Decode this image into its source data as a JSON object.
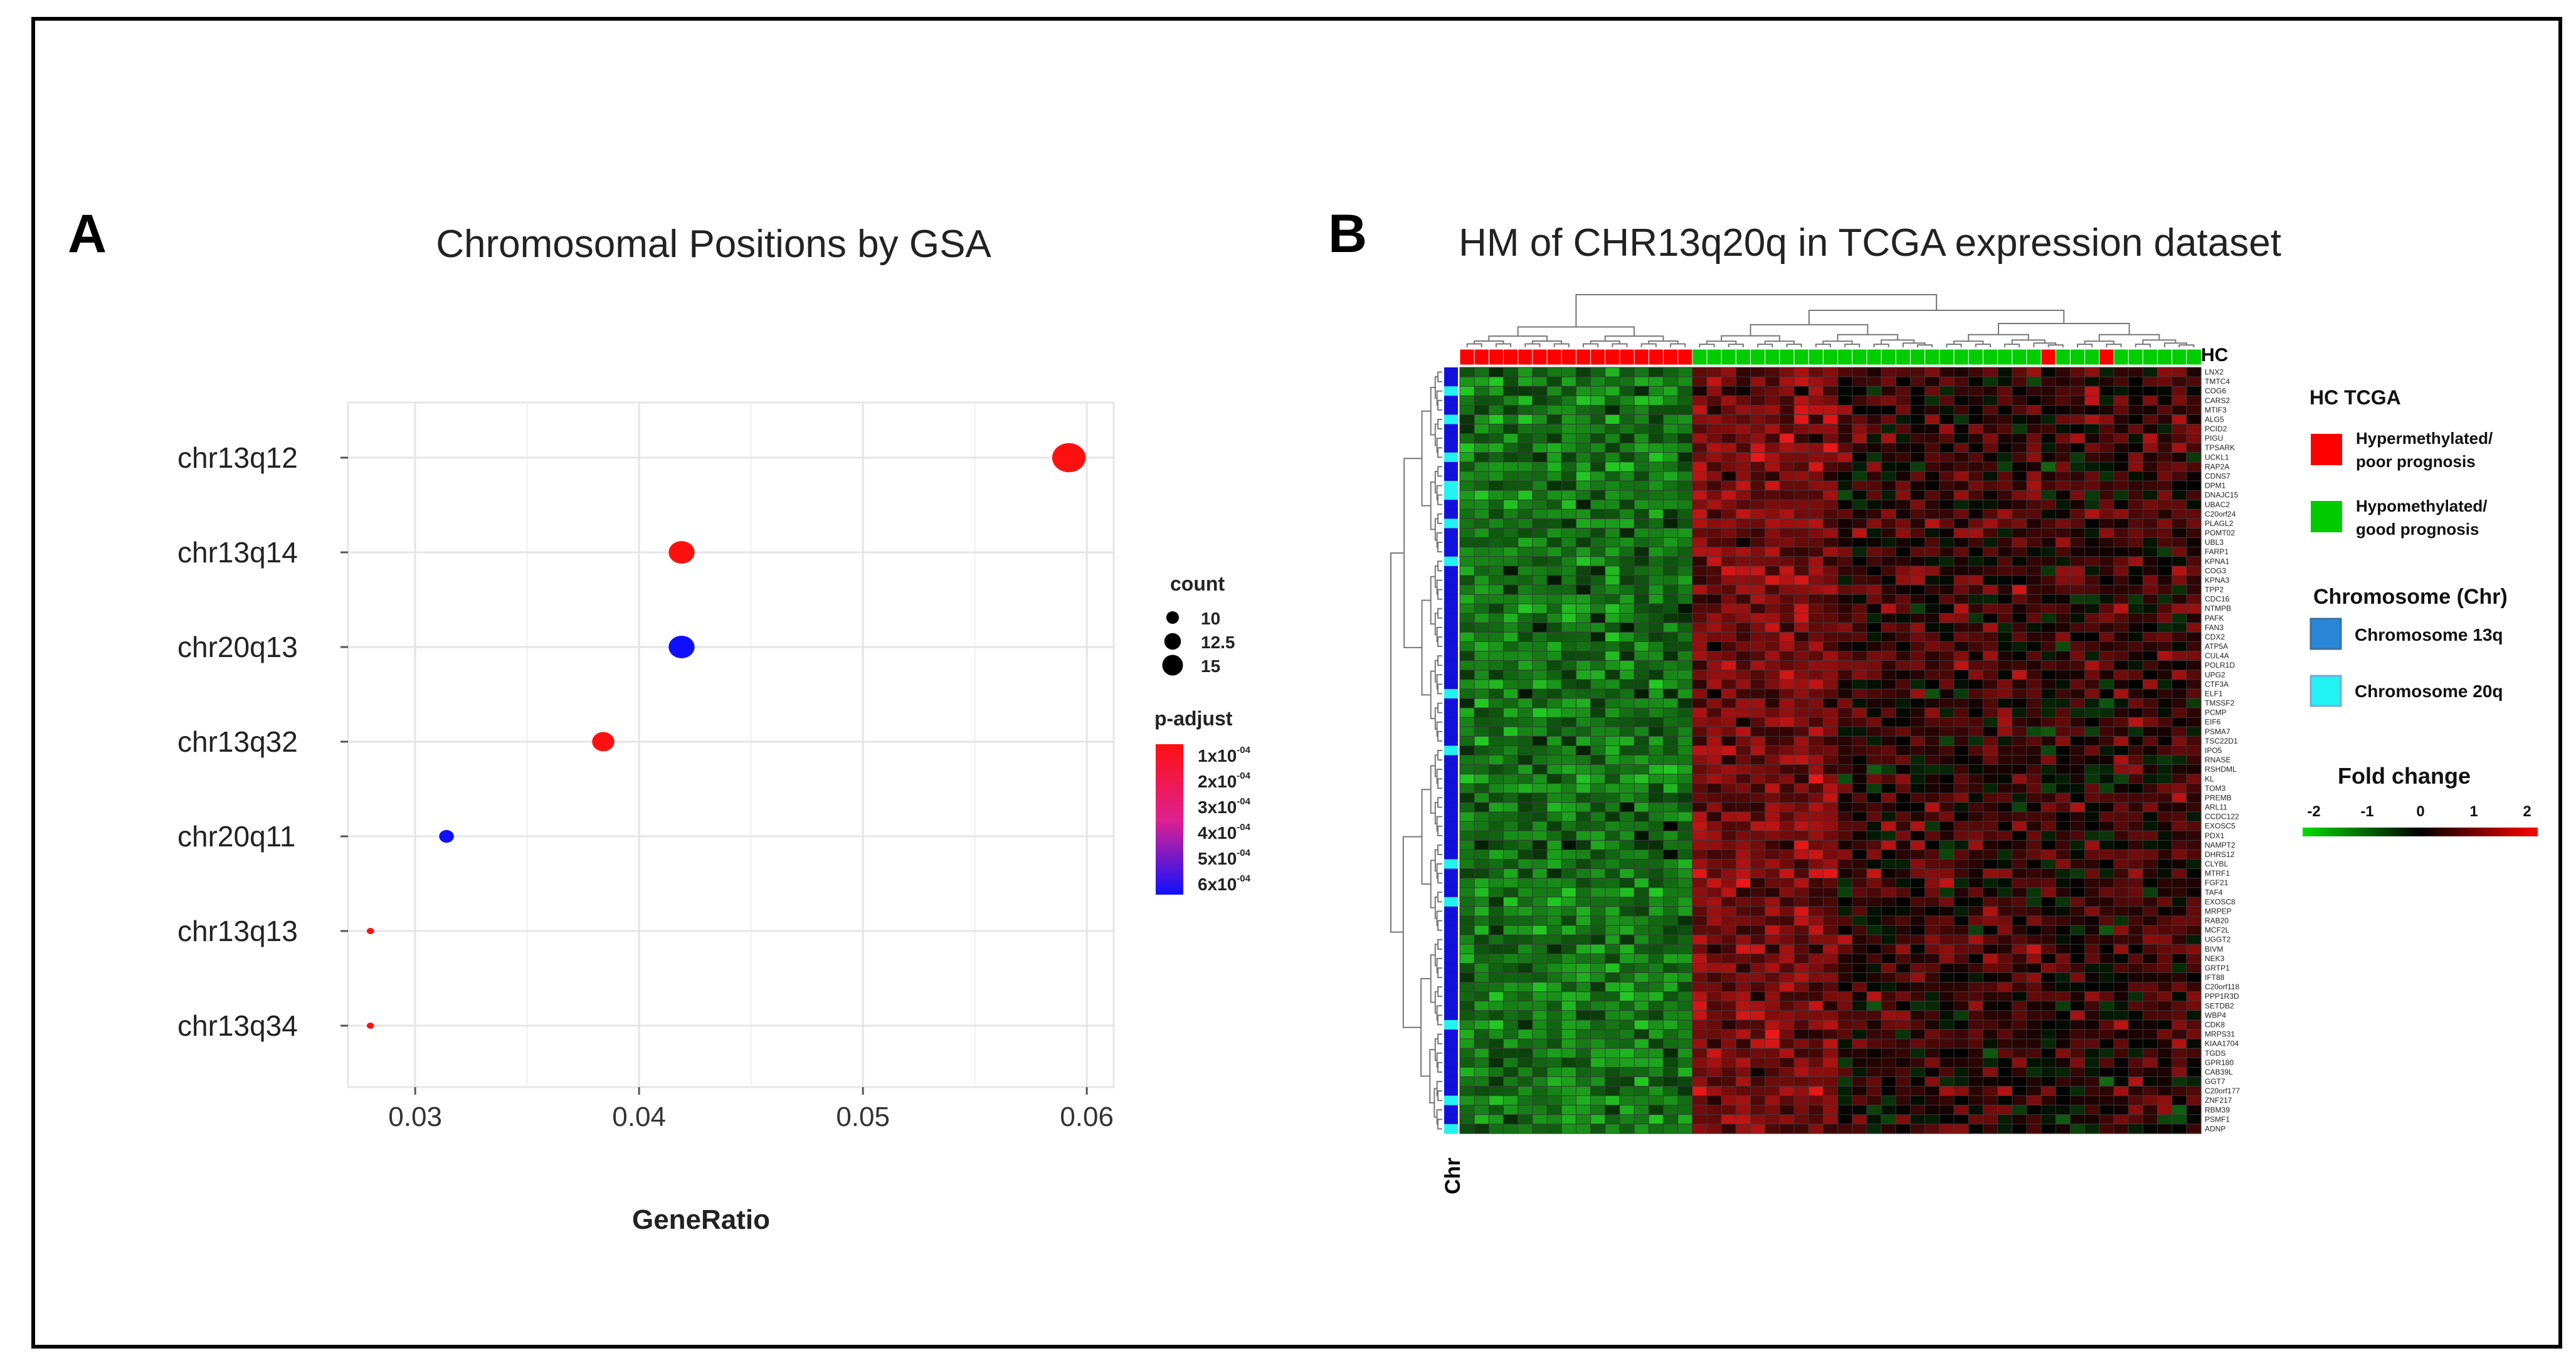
{
  "figure": {
    "panel_a_letter": "A",
    "panel_b_letter": "B"
  },
  "chart_data": [
    {
      "type": "scatter",
      "title": "Chromosomal Positions by GSA",
      "xlabel": "GeneRatio",
      "ylabel": "",
      "xlim": [
        0.027,
        0.0612
      ],
      "grid": true,
      "x_ticks": [
        0.03,
        0.04,
        0.05,
        0.06
      ],
      "x_tick_labels": [
        "0.03",
        "0.04",
        "0.05",
        "0.06"
      ],
      "categories": [
        "chr13q12",
        "chr13q14",
        "chr20q13",
        "chr13q32",
        "chr20q11",
        "chr13q13",
        "chr13q34"
      ],
      "points": [
        {
          "term": "chr13q12",
          "x": 0.0592,
          "count": 15,
          "p_adjust": 0.0001
        },
        {
          "term": "chr13q14",
          "x": 0.0419,
          "count": 13,
          "p_adjust": 0.0001
        },
        {
          "term": "chr20q13",
          "x": 0.0419,
          "count": 13,
          "p_adjust": 0.0006
        },
        {
          "term": "chr13q32",
          "x": 0.0384,
          "count": 12,
          "p_adjust": 0.0001
        },
        {
          "term": "chr20q11",
          "x": 0.0314,
          "count": 10,
          "p_adjust": 0.0006
        },
        {
          "term": "chr13q13",
          "x": 0.028,
          "count": 8,
          "p_adjust": 0.0001
        },
        {
          "term": "chr13q34",
          "x": 0.028,
          "count": 8,
          "p_adjust": 0.0001
        }
      ],
      "legend_count": {
        "title": "count",
        "entries": [
          {
            "label": "10",
            "value": 10
          },
          {
            "label": "12.5",
            "value": 12.5
          },
          {
            "label": "15",
            "value": 15
          }
        ]
      },
      "legend_padjust": {
        "title": "p-adjust",
        "entries": [
          {
            "mantissa": "1x10",
            "exp": "-04"
          },
          {
            "mantissa": "2x10",
            "exp": "-04"
          },
          {
            "mantissa": "3x10",
            "exp": "-04"
          },
          {
            "mantissa": "4x10",
            "exp": "-04"
          },
          {
            "mantissa": "5x10",
            "exp": "-04"
          },
          {
            "mantissa": "6x10",
            "exp": "-04"
          }
        ],
        "color_high": "#ff1010",
        "color_low": "#1010ff"
      },
      "legend_placement": "right"
    },
    {
      "type": "heatmap",
      "title": "HM of CHR13q20q in TCGA expression dataset",
      "row_annotation_label": "Chr",
      "col_annotation_label": "HC",
      "n_rows": 81,
      "n_cols": 51,
      "col_groups": [
        "H",
        "H",
        "H",
        "H",
        "H",
        "H",
        "H",
        "H",
        "H",
        "H",
        "H",
        "H",
        "H",
        "H",
        "H",
        "H",
        "G",
        "G",
        "G",
        "G",
        "G",
        "G",
        "G",
        "G",
        "G",
        "G",
        "G",
        "G",
        "G",
        "G",
        "G",
        "G",
        "G",
        "G",
        "G",
        "G",
        "G",
        "G",
        "G",
        "G",
        "H",
        "G",
        "G",
        "G",
        "H",
        "G",
        "G",
        "G",
        "G",
        "G",
        "G"
      ],
      "row_chromosome": [
        "13",
        "13",
        "20",
        "13",
        "13",
        "20",
        "13",
        "13",
        "13",
        "20",
        "13",
        "13",
        "20",
        "20",
        "13",
        "13",
        "20",
        "13",
        "13",
        "13",
        "20",
        "13",
        "13",
        "13",
        "13",
        "13",
        "13",
        "13",
        "13",
        "13",
        "13",
        "13",
        "13",
        "13",
        "20",
        "13",
        "13",
        "13",
        "13",
        "13",
        "20",
        "13",
        "13",
        "13",
        "13",
        "13",
        "13",
        "13",
        "13",
        "13",
        "13",
        "13",
        "20",
        "13",
        "13",
        "13",
        "20",
        "13",
        "13",
        "13",
        "13",
        "13",
        "13",
        "13",
        "13",
        "13",
        "13",
        "13",
        "13",
        "20",
        "13",
        "13",
        "13",
        "13",
        "13",
        "13",
        "13",
        "20",
        "13",
        "13",
        "20"
      ],
      "genes": [
        "LNX2",
        "TMTC4",
        "COG6",
        "CARS2",
        "MTIF3",
        "ALG5",
        "PCID2",
        "PIGU",
        "TPSARK",
        "UCKL1",
        "RAP2A",
        "CDNS7",
        "DPM1",
        "DNAJC15",
        "UBAC2",
        "C20orf24",
        "PLAGL2",
        "POMT02",
        "UBL3",
        "FARP1",
        "KPNA1",
        "COG3",
        "KPNA3",
        "TPP2",
        "CDC16",
        "NTMPB",
        "PAFK",
        "FAN3",
        "CDX2",
        "ATP5A",
        "CUL4A",
        "POLR1D",
        "UPG2",
        "CTF3A",
        "ELF1",
        "TMSSF2",
        "PCMP",
        "EIF6",
        "PSMA7",
        "TSC22D1",
        "IPO5",
        "RNASE",
        "RSHDML",
        "KL",
        "TOM3",
        "PREMB",
        "ARL11",
        "CCDC122",
        "EXOSC5",
        "PDX1",
        "NAMPT2",
        "DHRS12",
        "CLYBL",
        "MTRF1",
        "FGF21",
        "TAF4",
        "EXOSC8",
        "MRPEP",
        "RAB20",
        "MCF2L",
        "UGGT2",
        "BIVM",
        "NEK3",
        "GRTP1",
        "IFT88",
        "C20orf118",
        "PPP1R3D",
        "SETDB2",
        "WBP4",
        "CDK8",
        "MRPS31",
        "KIAA1704",
        "TGDS",
        "GPR180",
        "CAB39L",
        "GGT7",
        "C20orf177",
        "ZNF217",
        "RBM39",
        "PSMF1",
        "ADNP"
      ],
      "legend_hc": {
        "title": "HC TCGA",
        "entries": [
          {
            "line1": "Hypermethylated/",
            "line2": "poor prognosis",
            "color": "#ff0000"
          },
          {
            "line1": "Hypomethylated/",
            "line2": "good prognosis",
            "color": "#00cc00"
          }
        ]
      },
      "legend_chr": {
        "title": "Chromosome (Chr)",
        "entries": [
          {
            "label": "Chromosome 13q",
            "color": "#2a86d6"
          },
          {
            "label": "Chromosome 20q",
            "color": "#22f2f2"
          }
        ]
      },
      "legend_fold": {
        "title": "Fold change",
        "ticks": [
          "-2",
          "-1",
          "0",
          "1",
          "2"
        ],
        "range": [
          -2,
          2
        ],
        "color_low": "#00dd00",
        "color_mid": "#000000",
        "color_high": "#ff0000"
      },
      "colors": {
        "hyper": "#ff0000",
        "hypo": "#00cc00",
        "chr13": "#1111dd",
        "chr20": "#22f2f2"
      }
    }
  ]
}
